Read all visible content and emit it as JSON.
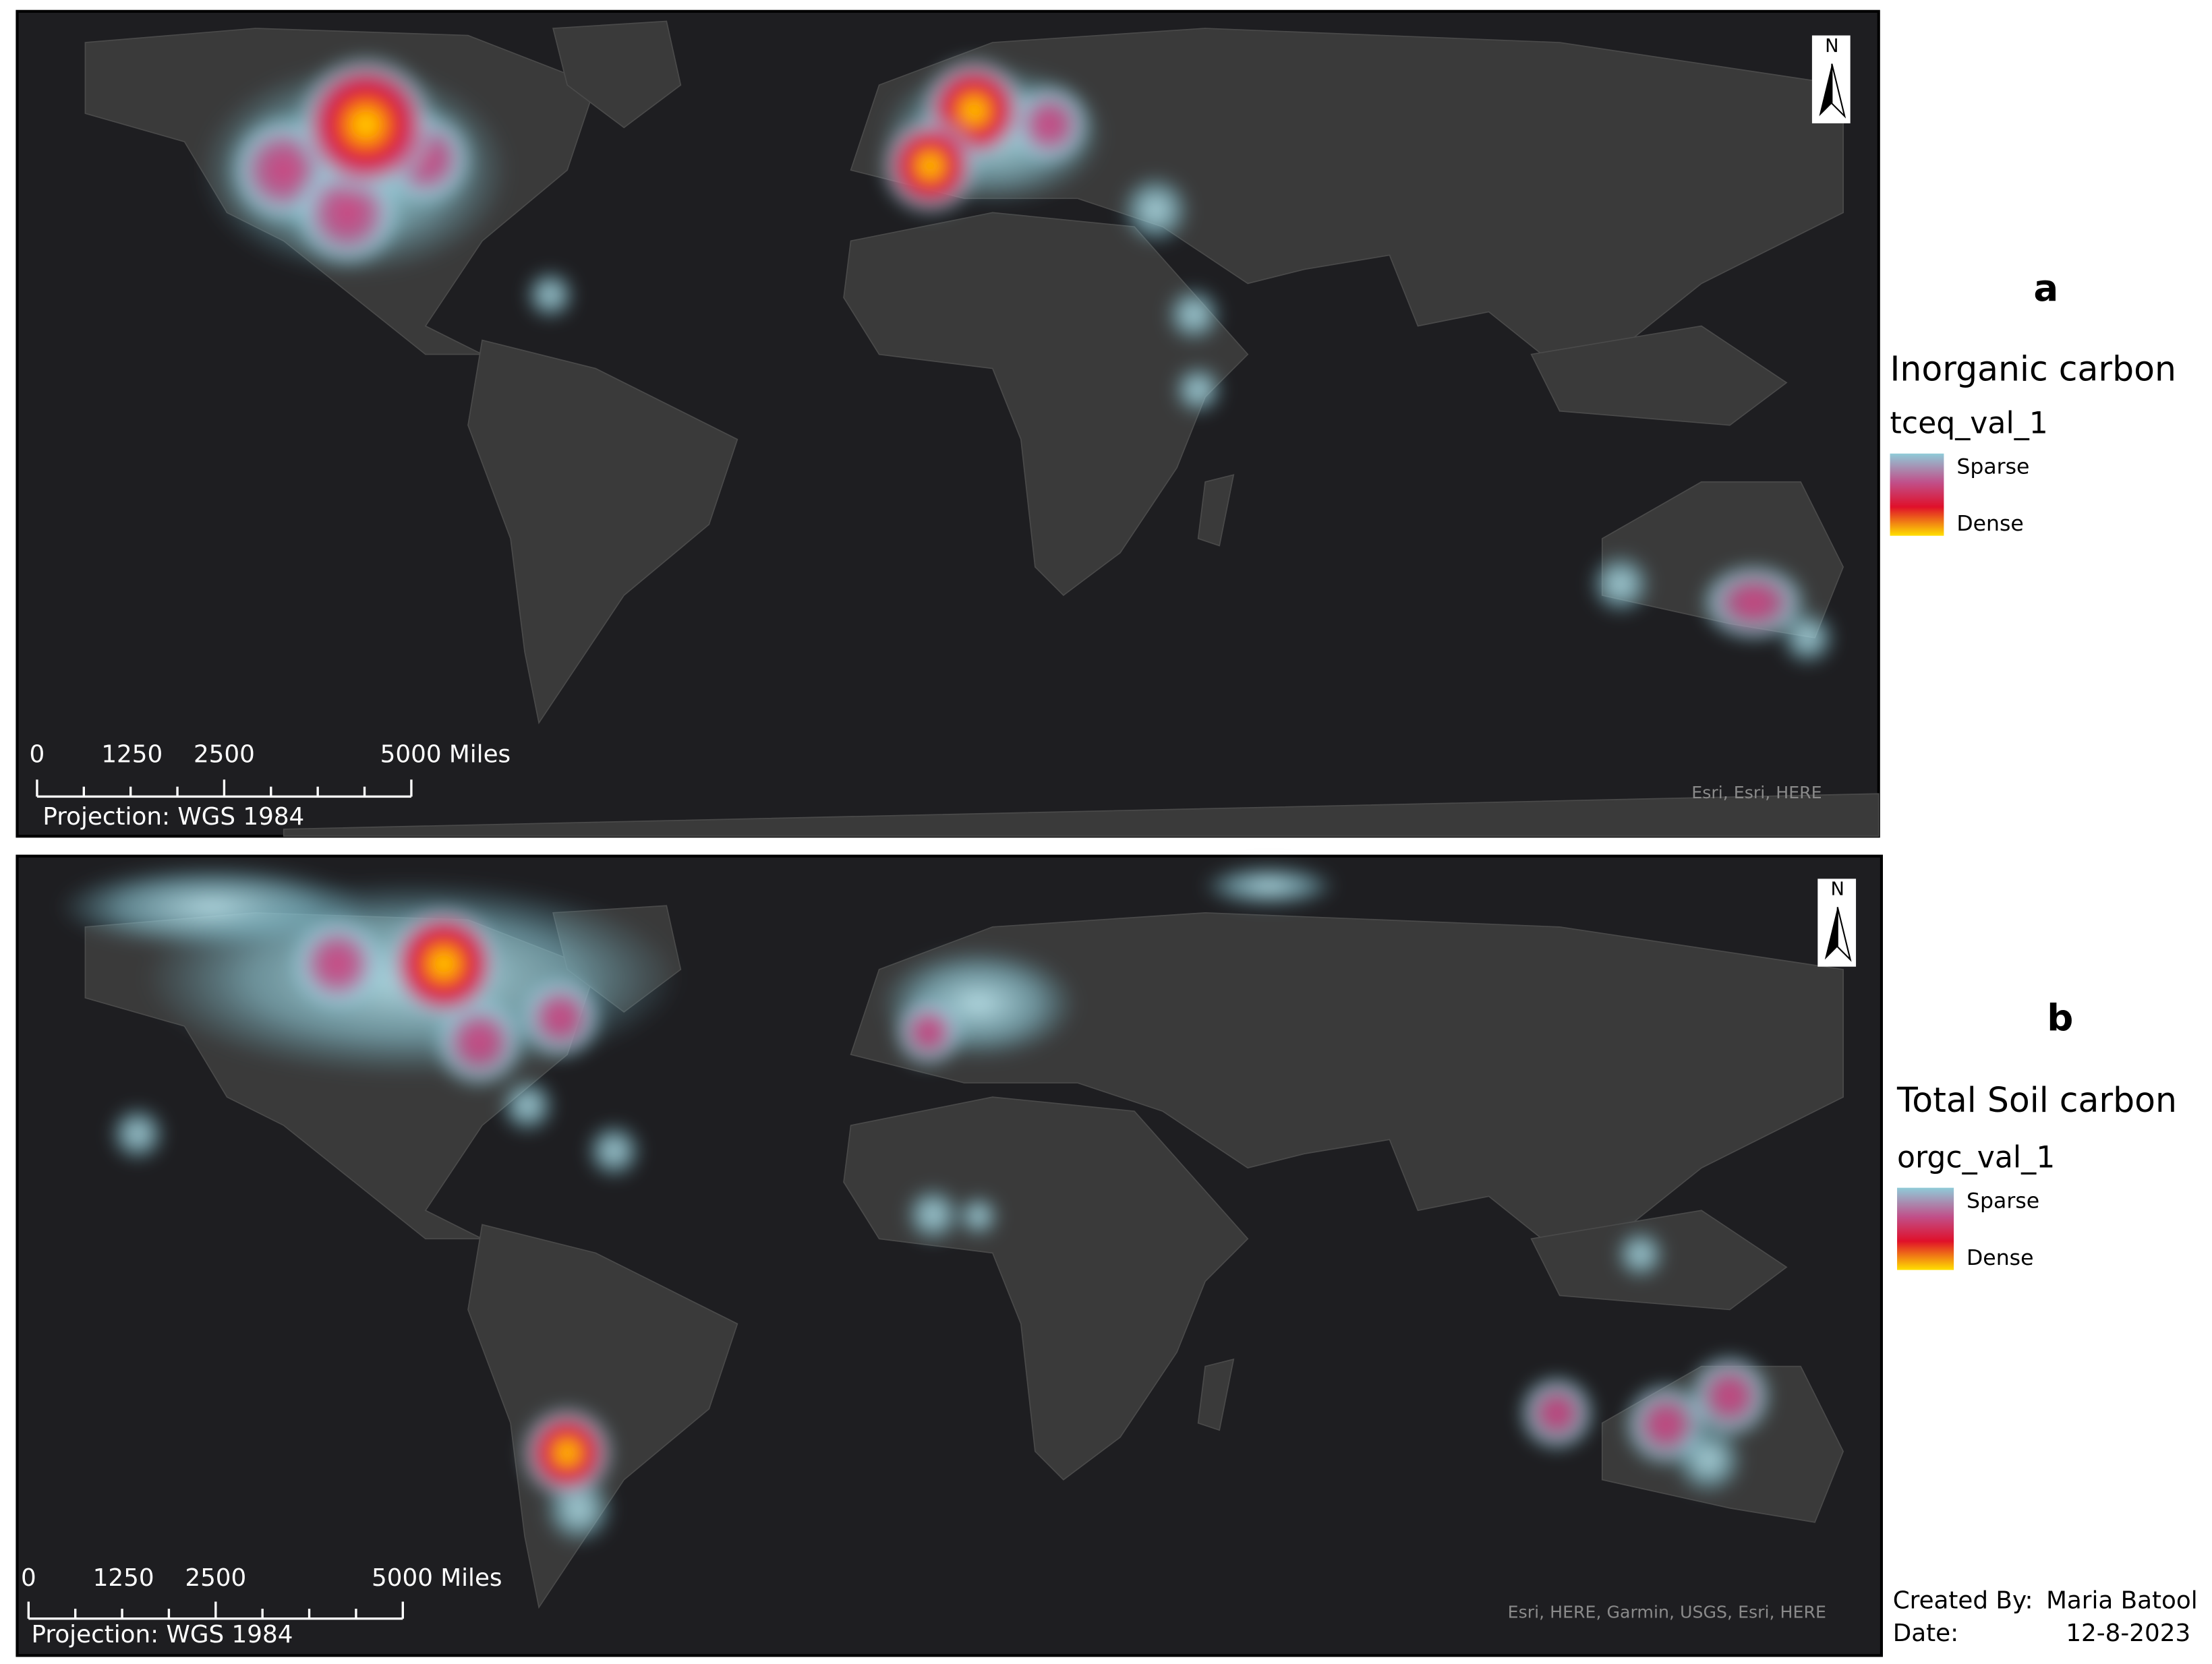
{
  "panels": [
    {
      "label": "a",
      "legend_title": "Inorganic carbon",
      "field": "tceq_val_1",
      "legend_sparse": "Sparse",
      "legend_dense": "Dense",
      "north": "N",
      "scale_labels": [
        "0",
        "1250",
        "2500",
        "5000 Miles"
      ],
      "projection": "Projection: WGS 1984",
      "attribution": "Esri, Esri, HERE"
    },
    {
      "label": "b",
      "legend_title": "Total Soil carbon",
      "field": "orgc_val_1",
      "legend_sparse": "Sparse",
      "legend_dense": "Dense",
      "north": "N",
      "scale_labels": [
        "0",
        "1250",
        "2500",
        "5000 Miles"
      ],
      "projection": "Projection: WGS 1984",
      "attribution": "Esri, HERE, Garmin, USGS, Esri, HERE"
    }
  ],
  "footer": {
    "created_by_label": "Created By:",
    "created_by": "Maria Batool",
    "date_label": "Date:",
    "date": "12-8-2023"
  }
}
